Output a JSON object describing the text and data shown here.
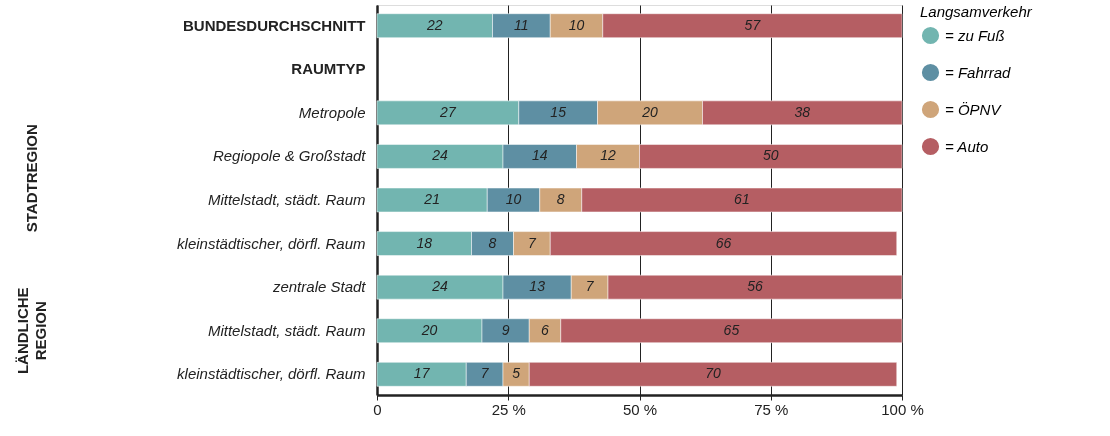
{
  "chart_data": {
    "type": "bar",
    "orientation": "horizontal",
    "stacked": true,
    "categories": [
      "BUNDESDURCHSCHNITT",
      "RAUMTYP",
      "Metropole",
      "Regiopole & Großstadt",
      "Mittelstadt, städt. Raum",
      "kleinstädtischer, dörfl. Raum",
      "zentrale Stadt",
      "Mittelstadt, städt. Raum",
      "kleinstädtischer, dörfl. Raum"
    ],
    "series": [
      {
        "name": "= zu Fuß",
        "color": "#72b5b0",
        "values": [
          22,
          null,
          27,
          24,
          21,
          18,
          24,
          20,
          17
        ]
      },
      {
        "name": "= Fahrrad",
        "color": "#5e8fa3",
        "values": [
          11,
          null,
          15,
          14,
          10,
          8,
          13,
          9,
          7
        ]
      },
      {
        "name": "= ÖPNV",
        "color": "#cfa57a",
        "values": [
          10,
          null,
          20,
          12,
          8,
          7,
          7,
          6,
          5
        ]
      },
      {
        "name": "= Auto",
        "color": "#b55e63",
        "values": [
          57,
          null,
          38,
          50,
          61,
          66,
          56,
          65,
          70
        ]
      }
    ],
    "legend_title": "Langsamverkehr",
    "legend": "right",
    "xlim": [
      0,
      100
    ],
    "xticks": [
      0,
      {
        "value": 25,
        "label": "25 %"
      },
      {
        "value": 50,
        "label": "50 %"
      },
      {
        "value": 75,
        "label": "75 %"
      },
      {
        "value": 100,
        "label": "100 %"
      }
    ],
    "grid": "x",
    "data_labels": true,
    "annotations": [
      "STADTREGION",
      "LÄNDLICHE REGION"
    ]
  }
}
